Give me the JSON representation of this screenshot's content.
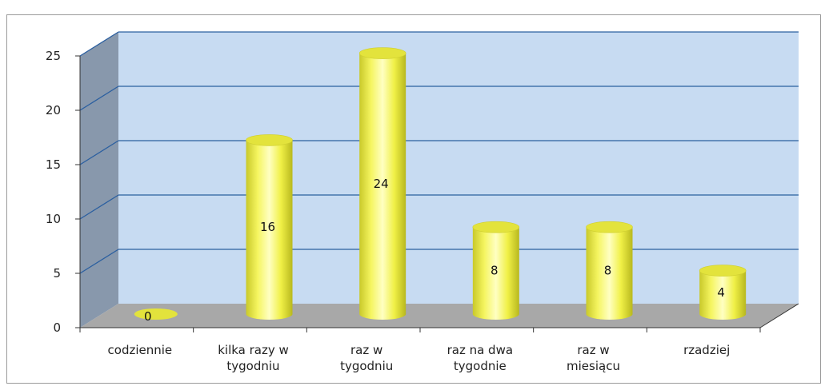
{
  "chart_data": {
    "type": "bar",
    "style": "3d-cylinder",
    "categories": [
      [
        "codziennie"
      ],
      [
        "kilka razy w",
        "tygodniu"
      ],
      [
        "raz w",
        "tygodniu"
      ],
      [
        "raz na dwa",
        "tygodnie"
      ],
      [
        "raz w",
        "miesiącu"
      ],
      [
        "rzadziej"
      ]
    ],
    "values": [
      0,
      16,
      24,
      8,
      8,
      4
    ],
    "data_labels": [
      "0",
      "16",
      "24",
      "8",
      "8",
      "4"
    ],
    "yticks": [
      "0",
      "5",
      "10",
      "15",
      "20",
      "25"
    ],
    "ylim": [
      0,
      25
    ],
    "grid": true,
    "legend": "none",
    "title": "",
    "xlabel": "",
    "ylabel": ""
  },
  "colors": {
    "back_wall": "#c7dbf2",
    "side_wall": "#8898ac",
    "floor": "#a8a8a8",
    "gridline": "#2b5fa0",
    "bar_fill": "#f2f24a",
    "bar_top": "#e3e33c",
    "bar_highlight": "#ffffd0"
  }
}
